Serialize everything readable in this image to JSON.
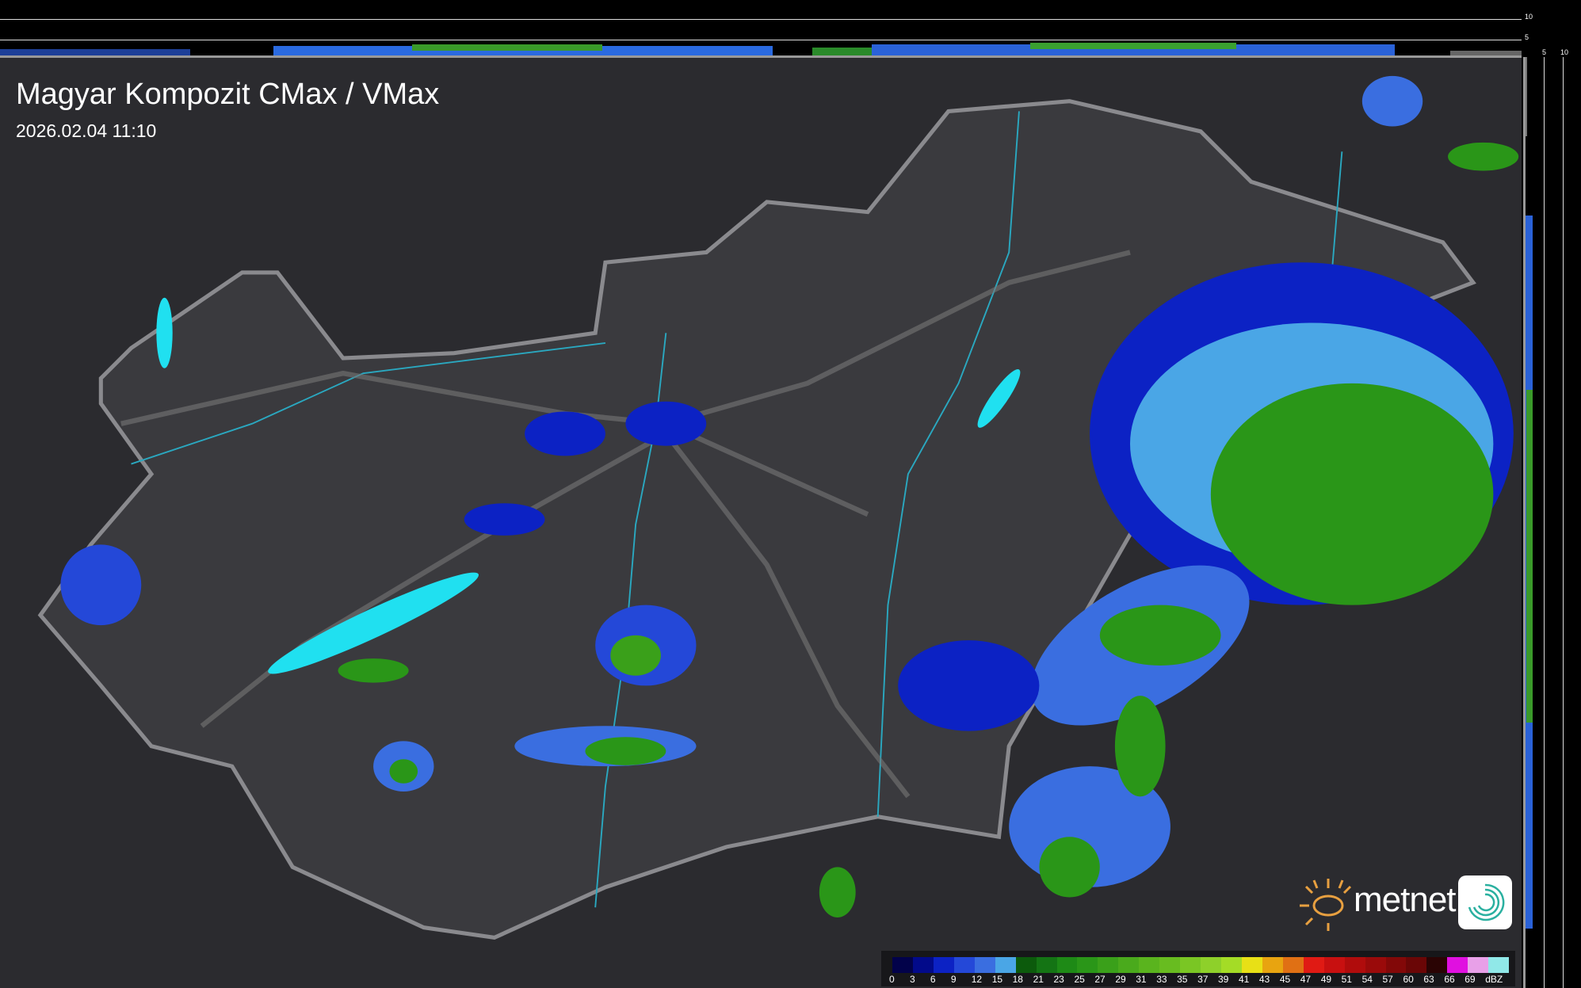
{
  "header": {
    "title": "Magyar Kompozit CMax / VMax",
    "timestamp": "2026.02.04 11:10"
  },
  "side_profiles": {
    "top_axis_labels": [
      "10",
      "5"
    ],
    "right_axis_labels": [
      "5",
      "10"
    ]
  },
  "legend": {
    "unit": "dBZ",
    "labels": [
      "0",
      "3",
      "6",
      "9",
      "12",
      "15",
      "18",
      "21",
      "23",
      "25",
      "27",
      "29",
      "31",
      "33",
      "35",
      "37",
      "39",
      "41",
      "43",
      "45",
      "47",
      "49",
      "51",
      "54",
      "57",
      "60",
      "63",
      "66",
      "69"
    ],
    "colors": [
      "#02024a",
      "#020a8a",
      "#0c22c4",
      "#2448d8",
      "#3a6ee0",
      "#4aa6e6",
      "#0c5a0c",
      "#147414",
      "#1e8a16",
      "#2a9618",
      "#3aa01a",
      "#4aaa1c",
      "#5ab41e",
      "#68bc20",
      "#7ac624",
      "#8ed02a",
      "#a4dc26",
      "#e8e016",
      "#e8a410",
      "#e07014",
      "#e01a14",
      "#c81010",
      "#b00c0c",
      "#9a0a0a",
      "#820808",
      "#6a0606",
      "#2a0404",
      "#e010e0",
      "#e8a0e8",
      "#90e8e8"
    ]
  },
  "branding": {
    "logo_text": "metnet",
    "accent_color": "#e8a040"
  },
  "map": {
    "region": "Hungary",
    "background_color": "#2b2b2f",
    "border_color": "#8a8a8e",
    "river_color": "#2aa8c0",
    "lake_color": "#20e0f0"
  }
}
